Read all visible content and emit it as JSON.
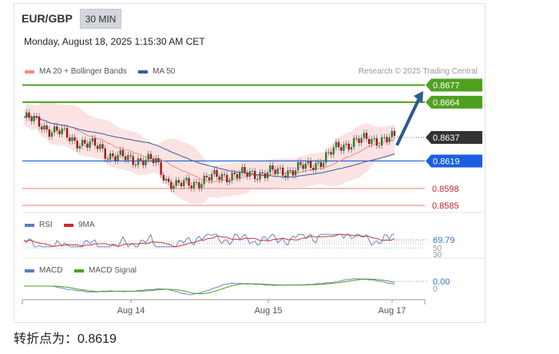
{
  "header": {
    "pair": "EUR/GBP",
    "timeframe": "30 MIN",
    "datetime": "Monday, August 18, 2025 1:15:30 AM CET"
  },
  "credit": "Research © 2025 Trading Central",
  "footer": "转折点为：0.8619",
  "legends": {
    "ma20": "MA 20 + Bollinger Bands",
    "ma50": "MA 50",
    "rsi": "RSI",
    "rsi_ma": "9MA",
    "macd": "MACD",
    "macd_signal": "MACD Signal"
  },
  "colors": {
    "green": "#4ea11f",
    "blue": "#1b5fe0",
    "red": "#c0272d",
    "dark": "#333333",
    "arrow": "#2e5a8c",
    "ma20": "#f08a8a",
    "ma50": "#3e5d9a"
  },
  "chart_data": [
    {
      "type": "candlestick",
      "x_tick_labels": [
        "Aug 14",
        "Aug 15",
        "Aug 17"
      ],
      "ylim": [
        0.8582,
        0.8681
      ],
      "levels": [
        {
          "label": "0.8677",
          "value": 0.8677,
          "style": "green"
        },
        {
          "label": "0.8664",
          "value": 0.8664,
          "style": "green"
        },
        {
          "label": "0.8637",
          "value": 0.8637,
          "style": "dark"
        },
        {
          "label": "0.8619",
          "value": 0.8619,
          "style": "blue"
        },
        {
          "label": "0.8598",
          "value": 0.8598,
          "style": "red"
        },
        {
          "label": "0.8585",
          "value": 0.8585,
          "style": "red"
        }
      ],
      "close_path": [
        [
          0,
          0.8652
        ],
        [
          5,
          0.8649
        ],
        [
          10,
          0.8643
        ],
        [
          15,
          0.864
        ],
        [
          20,
          0.8635
        ],
        [
          25,
          0.8631
        ],
        [
          30,
          0.863
        ],
        [
          33,
          0.8624
        ],
        [
          36,
          0.8622
        ],
        [
          40,
          0.8621
        ],
        [
          46,
          0.862
        ],
        [
          52,
          0.8618
        ],
        [
          56,
          0.8605
        ],
        [
          60,
          0.86
        ],
        [
          66,
          0.8602
        ],
        [
          72,
          0.8605
        ],
        [
          78,
          0.8608
        ],
        [
          85,
          0.8608
        ],
        [
          90,
          0.861
        ],
        [
          95,
          0.8609
        ],
        [
          100,
          0.8611
        ],
        [
          106,
          0.8612
        ],
        [
          112,
          0.8615
        ],
        [
          118,
          0.862
        ],
        [
          124,
          0.863
        ],
        [
          130,
          0.8634
        ],
        [
          136,
          0.8635
        ],
        [
          142,
          0.8636
        ],
        [
          146,
          0.8636
        ]
      ],
      "forecast_arrow": {
        "from": 0.8631,
        "to": 0.867
      },
      "last_price": 0.8637,
      "pivot": 0.8619
    },
    {
      "type": "line",
      "name": "RSI",
      "last_value_label": "69.79",
      "axis_labels": [
        "50",
        "30"
      ],
      "ylim": [
        0,
        100
      ]
    },
    {
      "type": "line",
      "name": "MACD",
      "last_value_label": "0.00",
      "axis_labels": [
        "0"
      ]
    }
  ]
}
